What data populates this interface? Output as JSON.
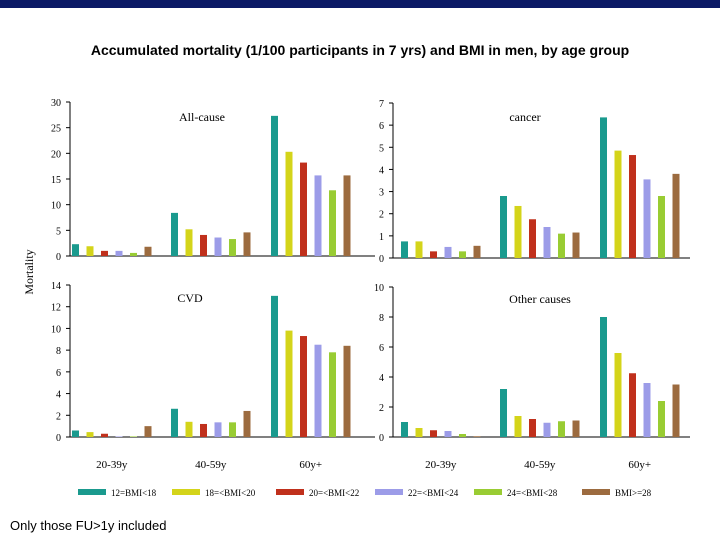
{
  "title": "Accumulated mortality (1/100 participants in 7 yrs) and BMI in men, by age group",
  "footnote": "Only those FU>1y included",
  "ylabel": "Mortality",
  "age_groups": [
    "20-39y",
    "40-59y",
    "60y+"
  ],
  "legend": [
    {
      "name": "12=BMI<18",
      "color": "#1a9a8e"
    },
    {
      "name": "18=<BMI<20",
      "color": "#d4d41a"
    },
    {
      "name": "20=<BMI<22",
      "color": "#c0301c"
    },
    {
      "name": "22=<BMI<24",
      "color": "#9c9ce8"
    },
    {
      "name": "24=<BMI<28",
      "color": "#99cc33"
    },
    {
      "name": "BMI>=28",
      "color": "#9c6b3f"
    }
  ],
  "chart_data": [
    {
      "type": "bar",
      "title": "All-cause",
      "categories": [
        "20-39y",
        "40-59y",
        "60y+"
      ],
      "ylim": [
        0,
        30
      ],
      "yticks": [
        0,
        5,
        10,
        15,
        20,
        25,
        30
      ],
      "series": [
        {
          "name": "12=BMI<18",
          "values": [
            2.3,
            8.4,
            27.3
          ]
        },
        {
          "name": "18=<BMI<20",
          "values": [
            1.9,
            5.2,
            20.3
          ]
        },
        {
          "name": "20=<BMI<22",
          "values": [
            1.0,
            4.1,
            18.2
          ]
        },
        {
          "name": "22=<BMI<24",
          "values": [
            1.0,
            3.6,
            15.7
          ]
        },
        {
          "name": "24=<BMI<28",
          "values": [
            0.6,
            3.3,
            12.8
          ]
        },
        {
          "name": "BMI>=28",
          "values": [
            1.8,
            4.6,
            15.7
          ]
        }
      ]
    },
    {
      "type": "bar",
      "title": "cancer",
      "categories": [
        "20-39y",
        "40-59y",
        "60y+"
      ],
      "ylim": [
        0,
        7
      ],
      "yticks": [
        0,
        1,
        2,
        3,
        4,
        5,
        6,
        7
      ],
      "series": [
        {
          "name": "12=BMI<18",
          "values": [
            0.75,
            2.8,
            6.35
          ]
        },
        {
          "name": "18=<BMI<20",
          "values": [
            0.75,
            2.35,
            4.85
          ]
        },
        {
          "name": "20=<BMI<22",
          "values": [
            0.3,
            1.75,
            4.65
          ]
        },
        {
          "name": "22=<BMI<24",
          "values": [
            0.5,
            1.4,
            3.55
          ]
        },
        {
          "name": "24=<BMI<28",
          "values": [
            0.3,
            1.1,
            2.8
          ]
        },
        {
          "name": "BMI>=28",
          "values": [
            0.55,
            1.15,
            3.8
          ]
        }
      ]
    },
    {
      "type": "bar",
      "title": "CVD",
      "categories": [
        "20-39y",
        "40-59y",
        "60y+"
      ],
      "ylim": [
        0,
        14
      ],
      "yticks": [
        0,
        2,
        4,
        6,
        8,
        10,
        12,
        14
      ],
      "series": [
        {
          "name": "12=BMI<18",
          "values": [
            0.6,
            2.6,
            13.0
          ]
        },
        {
          "name": "18=<BMI<20",
          "values": [
            0.45,
            1.4,
            9.8
          ]
        },
        {
          "name": "20=<BMI<22",
          "values": [
            0.3,
            1.2,
            9.3
          ]
        },
        {
          "name": "22=<BMI<24",
          "values": [
            0.05,
            1.35,
            8.5
          ]
        },
        {
          "name": "24=<BMI<28",
          "values": [
            0.05,
            1.35,
            7.8
          ]
        },
        {
          "name": "BMI>=28",
          "values": [
            1.0,
            2.4,
            8.4
          ]
        }
      ]
    },
    {
      "type": "bar",
      "title": "Other causes",
      "categories": [
        "20-39y",
        "40-59y",
        "60y+"
      ],
      "ylim": [
        0,
        10
      ],
      "yticks": [
        0,
        2,
        4,
        6,
        8,
        10
      ],
      "series": [
        {
          "name": "12=BMI<18",
          "values": [
            1.0,
            3.2,
            8.0
          ]
        },
        {
          "name": "18=<BMI<20",
          "values": [
            0.6,
            1.4,
            5.6
          ]
        },
        {
          "name": "20=<BMI<22",
          "values": [
            0.45,
            1.2,
            4.25
          ]
        },
        {
          "name": "22=<BMI<24",
          "values": [
            0.4,
            0.95,
            3.6
          ]
        },
        {
          "name": "24=<BMI<28",
          "values": [
            0.2,
            1.05,
            2.4
          ]
        },
        {
          "name": "BMI>=28",
          "values": [
            0.05,
            1.1,
            3.5
          ]
        }
      ]
    }
  ]
}
